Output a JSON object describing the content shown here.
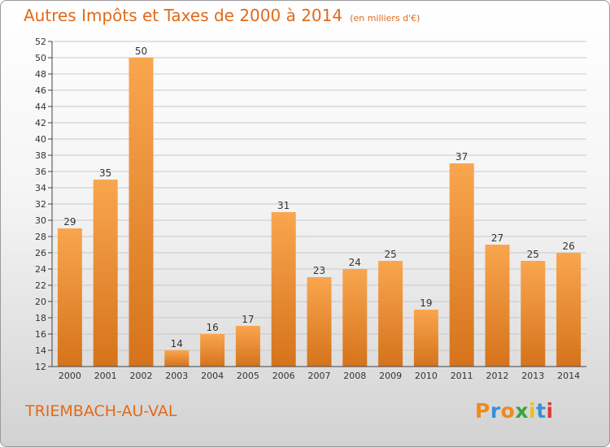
{
  "title": "Autres Impôts et Taxes de 2000 à 2014",
  "subtitle": "(en milliers d'€)",
  "commune": "TRIEMBACH-AU-VAL",
  "logo": {
    "letters": [
      "P",
      "r",
      "o",
      "x",
      "i",
      "t",
      "i"
    ],
    "colors": [
      "#f08a1c",
      "#3b8fd6",
      "#f08a1c",
      "#3aa43a",
      "#e8c21c",
      "#3b8fd6",
      "#e23a3a"
    ]
  },
  "colors": {
    "bar_top": "#f9a64f",
    "bar_bottom": "#d5731b",
    "text_accent": "#e06a1a"
  },
  "chart_data": {
    "type": "bar",
    "categories": [
      "2000",
      "2001",
      "2002",
      "2003",
      "2004",
      "2005",
      "2006",
      "2007",
      "2008",
      "2009",
      "2010",
      "2011",
      "2012",
      "2013",
      "2014"
    ],
    "values": [
      29,
      35,
      50,
      14,
      16,
      17,
      31,
      23,
      24,
      25,
      19,
      37,
      27,
      25,
      26
    ],
    "ylim": [
      12,
      52
    ],
    "ytick_step": 2,
    "grid": true
  }
}
